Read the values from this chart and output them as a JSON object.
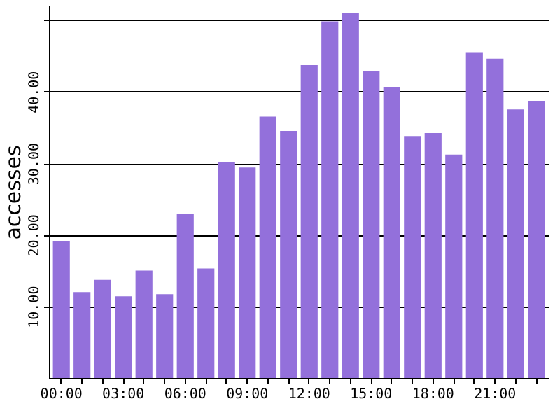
{
  "chart_data": {
    "type": "bar",
    "ylabel": "accesses",
    "categories": [
      "00:00",
      null,
      null,
      "03:00",
      null,
      null,
      "06:00",
      null,
      null,
      "09:00",
      null,
      null,
      "12:00",
      null,
      null,
      "15:00",
      null,
      null,
      "18:00",
      null,
      null,
      "21:00",
      null,
      null
    ],
    "values": [
      19.1,
      12.0,
      13.7,
      11.4,
      15.0,
      11.7,
      22.9,
      15.3,
      30.2,
      29.4,
      36.5,
      34.5,
      43.7,
      49.8,
      51.0,
      42.9,
      40.6,
      33.8,
      34.2,
      31.2,
      45.4,
      44.6,
      37.5,
      38.7
    ],
    "color": "#9370db",
    "ylim": [
      0,
      52
    ],
    "yticks": [
      {
        "value": 10,
        "label": "10.00"
      },
      {
        "value": 20,
        "label": "20.00"
      },
      {
        "value": 30,
        "label": "30.00"
      },
      {
        "value": 40,
        "label": "40.00"
      },
      {
        "value": 50,
        "label": null
      }
    ],
    "grid": "y"
  }
}
